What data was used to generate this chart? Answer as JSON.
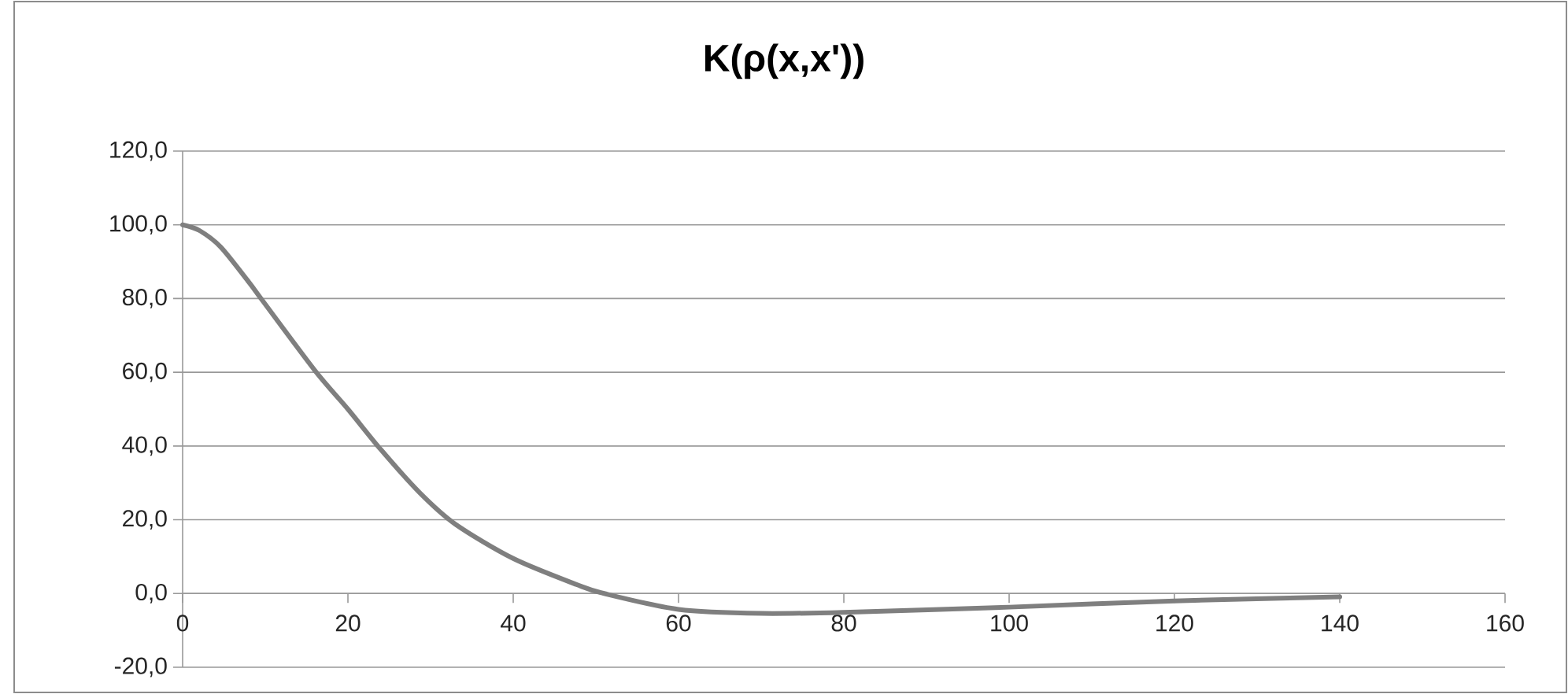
{
  "chart_data": {
    "type": "line",
    "title": "K(ρ(x,x'))",
    "x": [
      0,
      2,
      4.6,
      8,
      9.65,
      16,
      20,
      24,
      28.7,
      33,
      40,
      47.7,
      51,
      60,
      70,
      80,
      100,
      120,
      140
    ],
    "series": [
      {
        "color": "#7f7f7f",
        "values": [
          100,
          98.5,
          94,
          84.5,
          79.5,
          60.5,
          50,
          39,
          27.3,
          18.8,
          9.5,
          2.4,
          0,
          -4.3,
          -5.4,
          -5.1,
          -3.7,
          -2,
          -0.9
        ]
      }
    ],
    "xlim": [
      0,
      160
    ],
    "xticks": [
      0,
      20,
      40,
      60,
      80,
      100,
      120,
      140,
      160
    ],
    "ylim": [
      -20,
      120
    ],
    "yticks": [
      {
        "value": -20,
        "label": "-20,0"
      },
      {
        "value": 0,
        "label": "0,0"
      },
      {
        "value": 20,
        "label": "20,0"
      },
      {
        "value": 40,
        "label": "40,0"
      },
      {
        "value": 60,
        "label": "60,0"
      },
      {
        "value": 80,
        "label": "80,0"
      },
      {
        "value": 100,
        "label": "100,0"
      },
      {
        "value": 120,
        "label": "120,0"
      }
    ],
    "grid": "y",
    "marker": "none",
    "line_style": "solid"
  }
}
